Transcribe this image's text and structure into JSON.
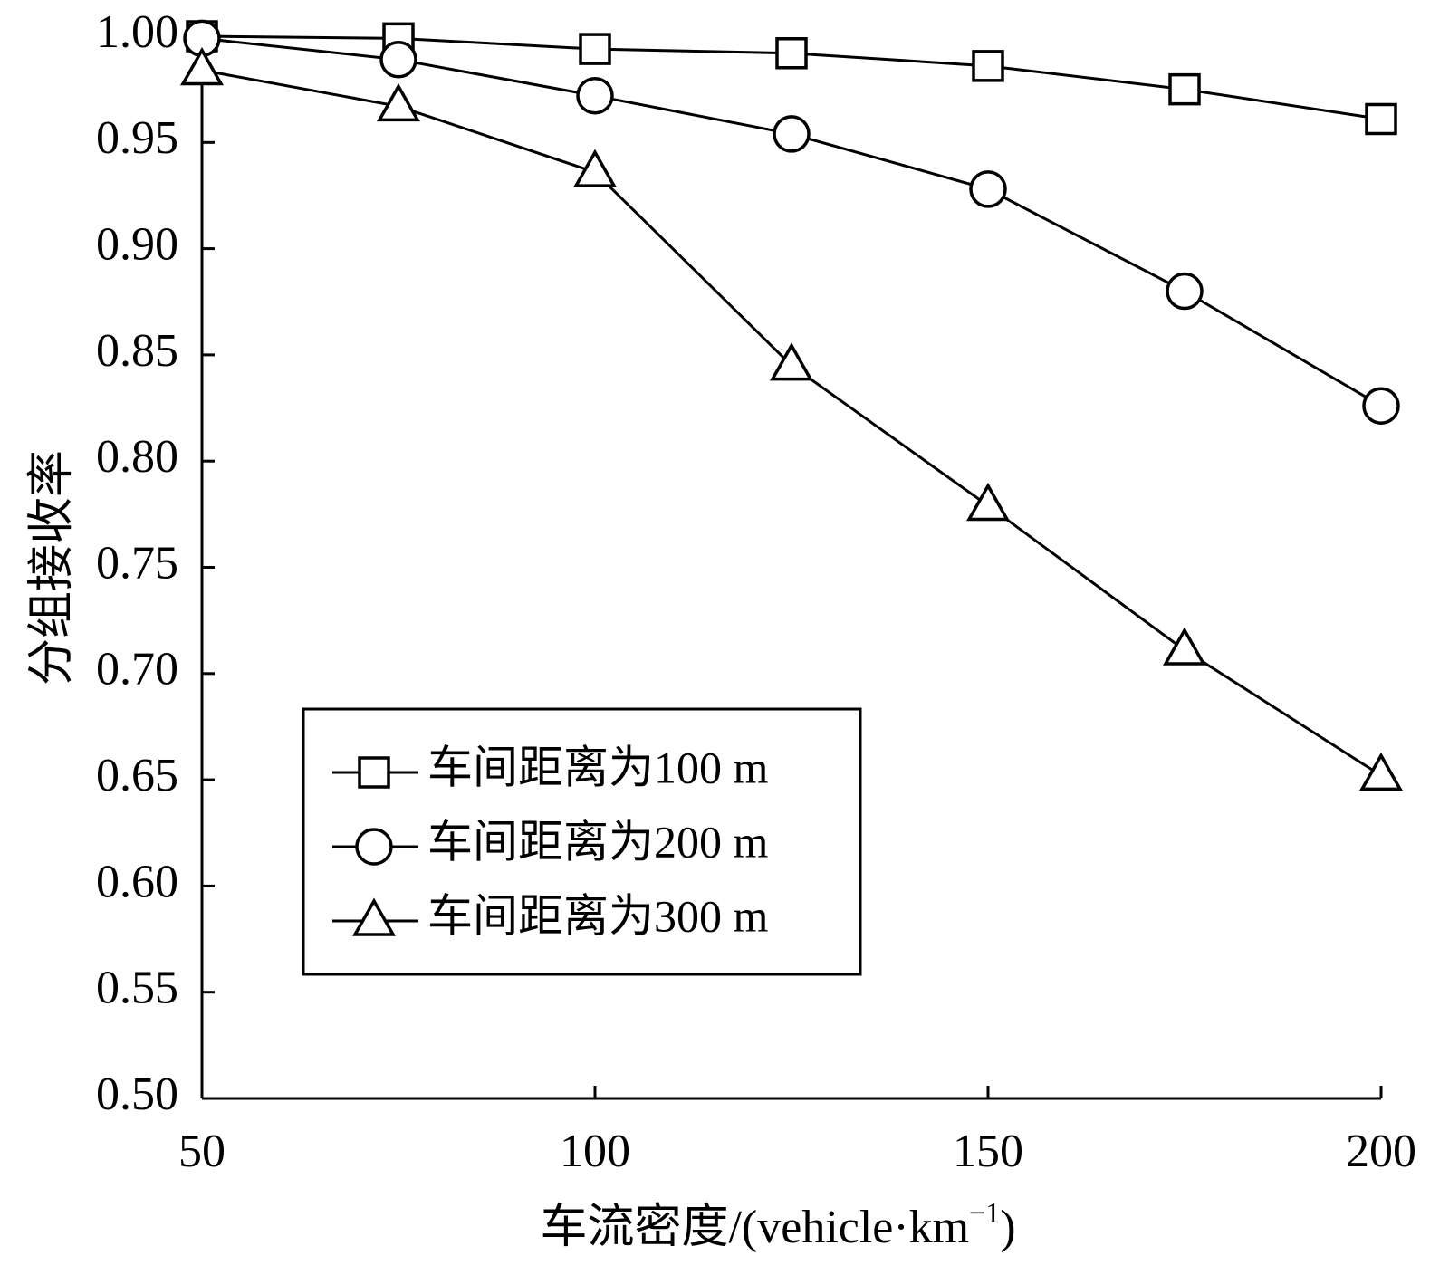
{
  "chart_data": {
    "type": "line",
    "title": "",
    "xlabel": "车流密度/(vehicle·km",
    "xlabel_sup": "−1",
    "xlabel_close": ")",
    "ylabel": "分组接收率",
    "xlim": [
      50,
      200
    ],
    "ylim": [
      0.5,
      1.0
    ],
    "x": [
      50,
      75,
      100,
      125,
      150,
      175,
      200
    ],
    "x_tick_values": [
      50,
      100,
      150,
      200
    ],
    "x_tick_labels": [
      "50",
      "100",
      "150",
      "200"
    ],
    "y_tick_values": [
      0.5,
      0.55,
      0.6,
      0.65,
      0.7,
      0.75,
      0.8,
      0.85,
      0.9,
      0.95,
      1.0
    ],
    "y_tick_labels": [
      "0.50",
      "0.55",
      "0.60",
      "0.65",
      "0.70",
      "0.75",
      "0.80",
      "0.85",
      "0.90",
      "0.95",
      "1.00"
    ],
    "grid": false,
    "legend_position": "lower-left",
    "series": [
      {
        "name": "车间距离为100 m",
        "marker": "square",
        "values": [
          1.0,
          0.999,
          0.994,
          0.992,
          0.986,
          0.975,
          0.961
        ]
      },
      {
        "name": "车间距离为200 m",
        "marker": "circle",
        "values": [
          0.999,
          0.989,
          0.972,
          0.954,
          0.928,
          0.88,
          0.826
        ]
      },
      {
        "name": "车间距离为300 m",
        "marker": "triangle",
        "values": [
          0.984,
          0.967,
          0.936,
          0.845,
          0.779,
          0.711,
          0.652
        ]
      }
    ]
  }
}
